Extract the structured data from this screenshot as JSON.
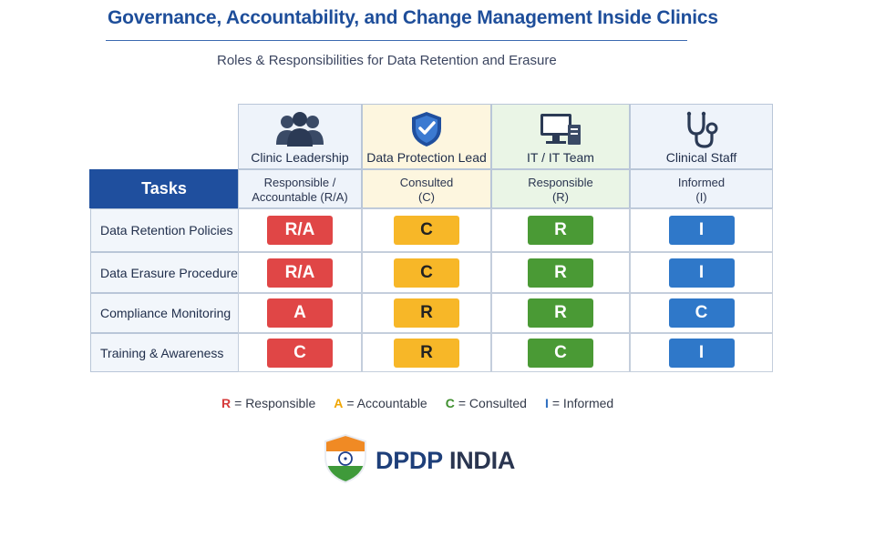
{
  "title": "Governance, Accountability, and Change Management Inside Clinics",
  "subtitle": "Roles & Responsibilities for Data Retention and Erasure",
  "tasks_header": "Tasks",
  "roles": [
    {
      "name": "Clinic Leadership",
      "sub1": "Responsible /",
      "sub2": "Accountable (R/A)",
      "icon": "group-icon"
    },
    {
      "name": "Data Protection Lead",
      "sub1": "Consulted",
      "sub2": "(C)",
      "icon": "shield-check-icon"
    },
    {
      "name": "IT / IT Team",
      "sub1": "Responsible",
      "sub2": "(R)",
      "icon": "computer-icon"
    },
    {
      "name": "Clinical Staff",
      "sub1": "Informed",
      "sub2": "(I)",
      "icon": "stethoscope-icon"
    }
  ],
  "rows": [
    {
      "task": "Data Retention Policies",
      "cells": [
        "R/A",
        "C",
        "R",
        "I"
      ]
    },
    {
      "task": "Data Erasure Procedures",
      "cells": [
        "R/A",
        "C",
        "R",
        "I"
      ]
    },
    {
      "task": "Compliance Monitoring",
      "cells": [
        "A",
        "R",
        "R",
        "C"
      ]
    },
    {
      "task": "Training & Awareness",
      "cells": [
        "C",
        "R",
        "C",
        "I"
      ]
    }
  ],
  "legend": [
    {
      "key": "R",
      "text": "= Responsible",
      "color": "#d63b3b"
    },
    {
      "key": "A",
      "text": "= Accountable",
      "color": "#f0a500"
    },
    {
      "key": "C",
      "text": "= Consulted",
      "color": "#3f8f2f"
    },
    {
      "key": "I",
      "text": "= Informed",
      "color": "#2f6fc0"
    }
  ],
  "brand": {
    "part1": "DPDP",
    "part2": " INDIA",
    "icon": "india-flag-shield-icon"
  },
  "colors": {
    "col_bg": [
      "#eef3fa",
      "#fdf6df",
      "#eaf5e6",
      "#eef3fa"
    ],
    "badges": [
      "#e04646",
      "#f7b728",
      "#4a9a35",
      "#2f78c9"
    ],
    "accent": "#1f4f9e"
  }
}
